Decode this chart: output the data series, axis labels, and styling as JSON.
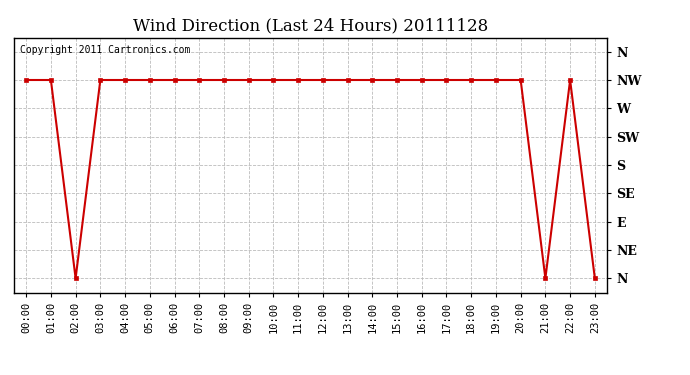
{
  "title": "Wind Direction (Last 24 Hours) 20111128",
  "copyright_text": "Copyright 2011 Cartronics.com",
  "line_color": "#cc0000",
  "marker_color": "#cc0000",
  "bg_color": "#ffffff",
  "grid_color": "#bbbbbb",
  "x_labels": [
    "00:00",
    "01:00",
    "02:00",
    "03:00",
    "04:00",
    "05:00",
    "06:00",
    "07:00",
    "08:00",
    "09:00",
    "10:00",
    "11:00",
    "12:00",
    "13:00",
    "14:00",
    "15:00",
    "16:00",
    "17:00",
    "18:00",
    "19:00",
    "20:00",
    "21:00",
    "22:00",
    "23:00"
  ],
  "y_tick_labels": [
    "N",
    "NE",
    "E",
    "SE",
    "S",
    "SW",
    "W",
    "NW",
    "N"
  ],
  "y_tick_values": [
    0,
    1,
    2,
    3,
    4,
    5,
    6,
    7,
    8
  ],
  "wind_data": [
    7,
    7,
    0,
    7,
    7,
    7,
    7,
    7,
    7,
    7,
    7,
    7,
    7,
    7,
    7,
    7,
    7,
    7,
    7,
    7,
    7,
    0,
    7,
    0
  ],
  "ylim": [
    -0.5,
    8.5
  ],
  "title_fontsize": 12,
  "tick_fontsize": 7.5,
  "y_tick_fontsize": 9
}
